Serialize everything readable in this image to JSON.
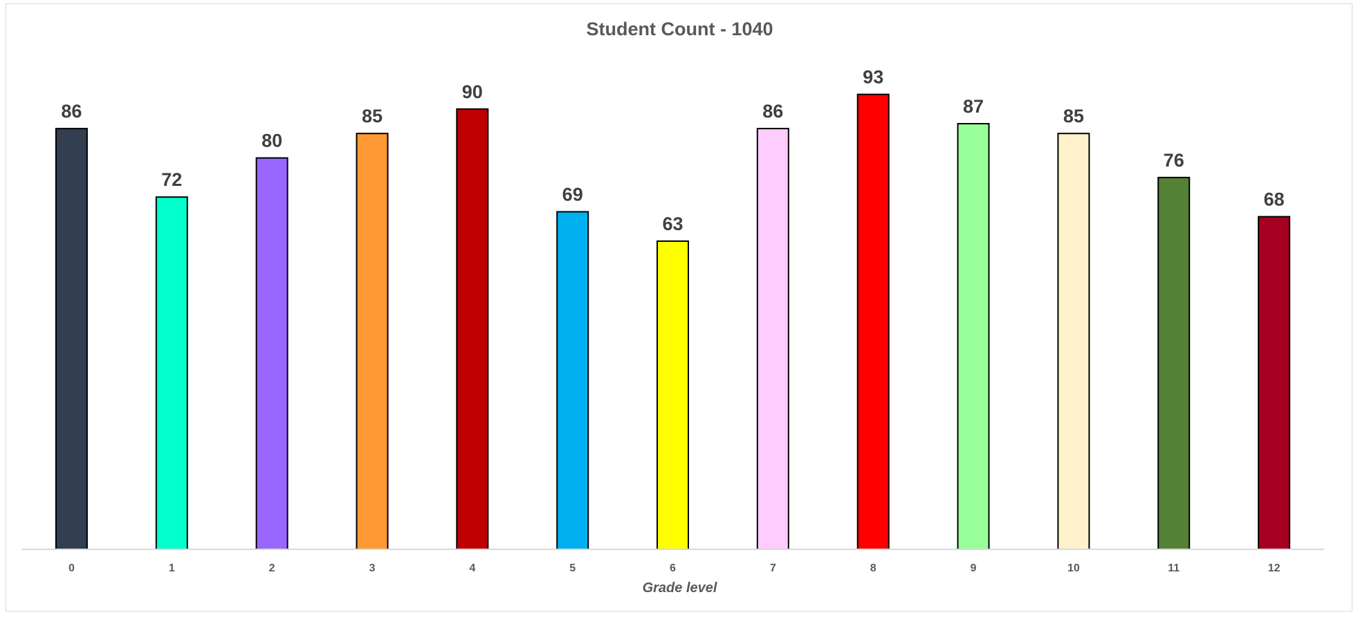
{
  "chart_data": {
    "type": "bar",
    "title": "Student Count - 1040",
    "xlabel": "Grade level",
    "ylabel": "",
    "categories": [
      "0",
      "1",
      "2",
      "3",
      "4",
      "5",
      "6",
      "7",
      "8",
      "9",
      "10",
      "11",
      "12"
    ],
    "values": [
      86,
      72,
      80,
      85,
      90,
      69,
      63,
      86,
      93,
      87,
      85,
      76,
      68
    ],
    "bar_colors": [
      "#333F50",
      "#00FFCC",
      "#9966FF",
      "#FF9933",
      "#C00000",
      "#00B0F0",
      "#FFFF00",
      "#FFCCFF",
      "#FF0000",
      "#99FF99",
      "#FFF2CC",
      "#538135",
      "#A50021"
    ],
    "ylim": [
      0,
      100
    ],
    "grid": false,
    "legend": "none",
    "data_labels": true
  }
}
